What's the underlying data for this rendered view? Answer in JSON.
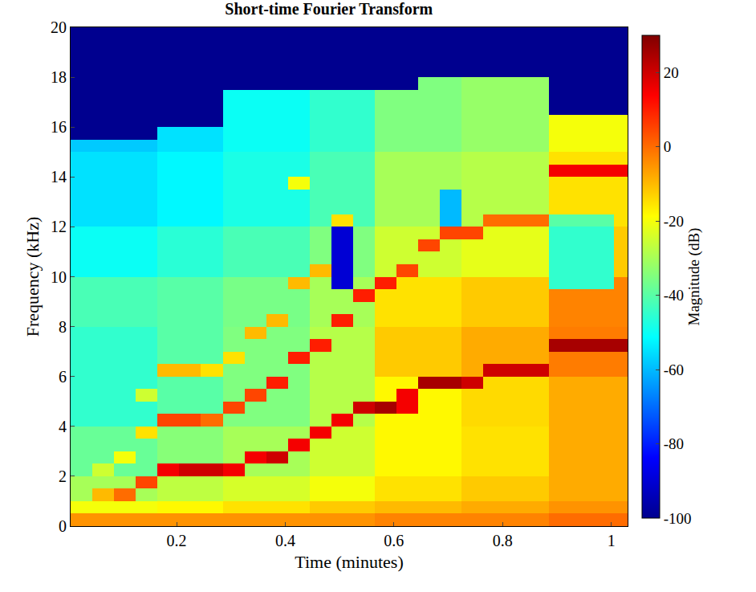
{
  "chart_data": {
    "type": "heatmap",
    "title": "Short-time Fourier Transform",
    "x_label": "Time (minutes)",
    "y_label": "Frequency (kHz)",
    "colorbar_label": "Magnitude (dB)",
    "x": [
      0.025,
      0.065,
      0.105,
      0.145,
      0.185,
      0.225,
      0.265,
      0.305,
      0.345,
      0.385,
      0.425,
      0.465,
      0.505,
      0.545,
      0.585,
      0.625,
      0.665,
      0.705,
      0.745,
      0.785,
      0.825,
      0.865,
      0.905,
      0.945,
      0.985,
      1.025
    ],
    "y": [
      0.25,
      0.75,
      1.25,
      1.75,
      2.25,
      2.75,
      3.25,
      3.75,
      4.25,
      4.75,
      5.25,
      5.75,
      6.25,
      6.75,
      7.25,
      7.75,
      8.25,
      8.75,
      9.25,
      9.75,
      10.25,
      10.75,
      11.25,
      11.75,
      12.25,
      12.75,
      13.25,
      13.75,
      14.25,
      14.75,
      15.25,
      15.75,
      16.25,
      16.75,
      17.25,
      17.75,
      18.25,
      18.75,
      19.25,
      19.75
    ],
    "z": [
      [
        -5,
        -5,
        -5,
        -5,
        -5,
        -5,
        -5,
        -5,
        -5,
        -5,
        -5,
        -5,
        -5,
        -5,
        -3,
        -3,
        -3,
        -3,
        -3,
        -3,
        -3,
        -3,
        0,
        0,
        0,
        0
      ],
      [
        -20,
        -20,
        -20,
        -20,
        -18,
        -18,
        -18,
        -15,
        -15,
        -15,
        -15,
        -12,
        -12,
        -12,
        -10,
        -10,
        -10,
        -10,
        -8,
        -8,
        -8,
        -8,
        -5,
        -5,
        -5,
        -5
      ],
      [
        -30,
        -10,
        0,
        -30,
        -27,
        -27,
        -27,
        -24,
        -24,
        -24,
        -24,
        -20,
        -20,
        -20,
        -15,
        -15,
        -15,
        -15,
        -12,
        -12,
        -12,
        -12,
        -8,
        -8,
        -8,
        -8
      ],
      [
        -30,
        -30,
        -30,
        5,
        -27,
        -27,
        -27,
        -24,
        -24,
        -24,
        -24,
        -20,
        -20,
        -20,
        -15,
        -15,
        -15,
        -15,
        -12,
        -12,
        -12,
        -12,
        -8,
        -8,
        -8,
        -8
      ],
      [
        -38,
        -25,
        -38,
        -38,
        15,
        20,
        20,
        15,
        -30,
        -30,
        -30,
        -25,
        -25,
        -25,
        -18,
        -18,
        -18,
        -18,
        -15,
        -15,
        -15,
        -15,
        -8,
        -8,
        -8,
        -8
      ],
      [
        -38,
        -38,
        -20,
        -38,
        -34,
        -34,
        -34,
        -30,
        15,
        20,
        -30,
        -25,
        -25,
        -25,
        -18,
        -18,
        -18,
        -18,
        -15,
        -15,
        -15,
        -15,
        -8,
        -8,
        -8,
        -8
      ],
      [
        -38,
        -38,
        -38,
        -38,
        -34,
        -34,
        -34,
        -30,
        -30,
        -30,
        15,
        -25,
        -25,
        -25,
        -18,
        -18,
        -18,
        -18,
        -15,
        -15,
        -15,
        -15,
        -8,
        -8,
        -8,
        -8
      ],
      [
        -38,
        -38,
        -38,
        -15,
        -34,
        -34,
        -34,
        -30,
        -30,
        -30,
        -30,
        15,
        -25,
        -25,
        -18,
        -18,
        -18,
        -18,
        -15,
        -15,
        -15,
        -15,
        -8,
        -8,
        -8,
        -8
      ],
      [
        -45,
        -45,
        -45,
        -45,
        5,
        5,
        0,
        -35,
        -35,
        -35,
        -35,
        -28,
        15,
        -28,
        -18,
        -18,
        -18,
        -18,
        -14,
        -14,
        -14,
        -14,
        -8,
        -8,
        -8,
        -8
      ],
      [
        -45,
        -45,
        -45,
        -45,
        -40,
        -40,
        -40,
        5,
        -35,
        -35,
        -35,
        -28,
        -28,
        20,
        25,
        15,
        -18,
        -18,
        -14,
        -14,
        -14,
        -14,
        -8,
        -8,
        -8,
        -8
      ],
      [
        -45,
        -45,
        -45,
        -25,
        -40,
        -40,
        -40,
        -35,
        5,
        -35,
        -35,
        -28,
        -28,
        -28,
        -18,
        15,
        -18,
        -18,
        -14,
        -14,
        -14,
        -14,
        -8,
        -8,
        -8,
        -8
      ],
      [
        -45,
        -45,
        -45,
        -45,
        -40,
        -40,
        -40,
        -35,
        -35,
        10,
        -35,
        -28,
        -28,
        -28,
        -18,
        -18,
        25,
        25,
        20,
        -14,
        -14,
        -14,
        -8,
        -8,
        -8,
        -8
      ],
      [
        -45,
        -45,
        -45,
        -45,
        -10,
        -10,
        -15,
        -35,
        -35,
        -35,
        -35,
        -28,
        -28,
        -28,
        -12,
        -12,
        -12,
        -12,
        -8,
        20,
        20,
        20,
        -2,
        -2,
        -2,
        -2
      ],
      [
        -45,
        -45,
        -45,
        -45,
        -40,
        -40,
        -40,
        -15,
        -35,
        -35,
        10,
        -28,
        -28,
        -28,
        -12,
        -12,
        -12,
        -12,
        -8,
        -8,
        -8,
        -8,
        -2,
        -2,
        -2,
        -2
      ],
      [
        -45,
        -45,
        -45,
        -45,
        -40,
        -40,
        -40,
        -35,
        -35,
        -35,
        -35,
        10,
        -28,
        -28,
        -12,
        -12,
        -12,
        -12,
        -8,
        -8,
        -8,
        -8,
        25,
        25,
        25,
        25
      ],
      [
        -45,
        -45,
        -45,
        -45,
        -40,
        -40,
        -40,
        -35,
        -10,
        -35,
        -35,
        -28,
        -28,
        -28,
        -12,
        -12,
        -12,
        -12,
        -8,
        -8,
        -8,
        -8,
        -2,
        -2,
        -2,
        -2
      ],
      [
        -42,
        -42,
        -42,
        -42,
        -40,
        -40,
        -40,
        -36,
        -36,
        -10,
        -36,
        -30,
        10,
        -30,
        -15,
        -15,
        -15,
        -15,
        -12,
        -12,
        -12,
        -12,
        -3,
        -3,
        -3,
        -3
      ],
      [
        -42,
        -42,
        -42,
        -42,
        -40,
        -40,
        -40,
        -36,
        -36,
        -36,
        -36,
        -30,
        -30,
        -30,
        -15,
        -15,
        -15,
        -15,
        -12,
        -12,
        -12,
        -12,
        -3,
        -3,
        -3,
        -3
      ],
      [
        -42,
        -42,
        -42,
        -42,
        -40,
        -40,
        -40,
        -36,
        -36,
        -36,
        -36,
        -30,
        -30,
        10,
        -15,
        -15,
        -15,
        -15,
        -12,
        -12,
        -12,
        -12,
        -3,
        -3,
        -3,
        -3
      ],
      [
        -42,
        -42,
        -42,
        -42,
        -40,
        -40,
        -40,
        -36,
        -36,
        -36,
        -10,
        -30,
        -90,
        -30,
        10,
        -15,
        -15,
        -15,
        -12,
        -12,
        -12,
        -12,
        -45,
        -45,
        -45,
        -3
      ],
      [
        -50,
        -50,
        -50,
        -50,
        -46,
        -46,
        -46,
        -42,
        -42,
        -42,
        -42,
        -10,
        -90,
        -35,
        -25,
        5,
        -25,
        -25,
        -22,
        -22,
        -22,
        -22,
        -45,
        -45,
        -45,
        -12
      ],
      [
        -50,
        -50,
        -50,
        -50,
        -46,
        -46,
        -46,
        -42,
        -42,
        -42,
        -42,
        -35,
        -90,
        -35,
        -25,
        -25,
        -25,
        -25,
        -22,
        -22,
        -22,
        -22,
        -45,
        -45,
        -45,
        -12
      ],
      [
        -50,
        -50,
        -50,
        -50,
        -46,
        -46,
        -46,
        -42,
        -42,
        -42,
        -42,
        -35,
        -90,
        -35,
        -25,
        -25,
        5,
        -25,
        -22,
        -22,
        -22,
        -22,
        -45,
        -45,
        -45,
        -12
      ],
      [
        -50,
        -50,
        -50,
        -50,
        -46,
        -46,
        -46,
        -42,
        -42,
        -42,
        -42,
        -35,
        -90,
        -35,
        -25,
        -25,
        -25,
        5,
        5,
        -22,
        -22,
        -22,
        -45,
        -45,
        -45,
        -12
      ],
      [
        -55,
        -55,
        -55,
        -55,
        -52,
        -52,
        -52,
        -48,
        -48,
        -48,
        -48,
        -42,
        -15,
        -42,
        -30,
        -30,
        -30,
        -60,
        -28,
        0,
        0,
        0,
        -40,
        -40,
        -40,
        -15
      ],
      [
        -55,
        -55,
        -55,
        -55,
        -52,
        -52,
        -52,
        -48,
        -48,
        -48,
        -48,
        -42,
        -42,
        -42,
        -30,
        -30,
        -30,
        -60,
        -28,
        -28,
        -28,
        -28,
        -15,
        -15,
        -15,
        -15
      ],
      [
        -55,
        -55,
        -55,
        -55,
        -52,
        -52,
        -52,
        -48,
        -48,
        -48,
        -48,
        -42,
        -42,
        -42,
        -30,
        -30,
        -30,
        -60,
        -28,
        -28,
        -28,
        -28,
        -15,
        -15,
        -15,
        -15
      ],
      [
        -55,
        -55,
        -55,
        -55,
        -52,
        -52,
        -52,
        -48,
        -48,
        -48,
        -20,
        -42,
        -42,
        -42,
        -30,
        -30,
        -30,
        -30,
        -28,
        -28,
        -28,
        -28,
        -15,
        -15,
        -15,
        -15
      ],
      [
        -55,
        -55,
        -55,
        -55,
        -52,
        -52,
        -52,
        -48,
        -48,
        -48,
        -48,
        -42,
        -42,
        -42,
        -30,
        -30,
        -30,
        -30,
        -28,
        -28,
        -28,
        -28,
        15,
        15,
        15,
        15
      ],
      [
        -55,
        -55,
        -55,
        -55,
        -52,
        -52,
        -52,
        -48,
        -48,
        -48,
        -48,
        -42,
        -42,
        -42,
        -30,
        -30,
        -30,
        -30,
        -28,
        -28,
        -28,
        -28,
        -15,
        -15,
        -15,
        -15
      ],
      [
        -58,
        -58,
        -58,
        -58,
        -55,
        -55,
        -55,
        -50,
        -50,
        -50,
        -50,
        -45,
        -45,
        -45,
        -35,
        -35,
        -35,
        -35,
        -32,
        -32,
        -32,
        -32,
        -20,
        -20,
        -20,
        -20
      ],
      [
        -100,
        -100,
        -100,
        -100,
        -55,
        -55,
        -55,
        -50,
        -50,
        -50,
        -50,
        -45,
        -45,
        -45,
        -35,
        -35,
        -35,
        -35,
        -32,
        -32,
        -32,
        -32,
        -20,
        -20,
        -20,
        -20
      ],
      [
        -100,
        -100,
        -100,
        -100,
        -100,
        -100,
        -100,
        -50,
        -50,
        -50,
        -50,
        -45,
        -45,
        -45,
        -35,
        -35,
        -35,
        -35,
        -32,
        -32,
        -32,
        -32,
        -20,
        -20,
        -20,
        -20
      ],
      [
        -100,
        -100,
        -100,
        -100,
        -100,
        -100,
        -100,
        -50,
        -50,
        -50,
        -50,
        -45,
        -45,
        -45,
        -35,
        -35,
        -35,
        -35,
        -32,
        -32,
        -32,
        -32,
        -100,
        -100,
        -100,
        -100
      ],
      [
        -100,
        -100,
        -100,
        -100,
        -100,
        -100,
        -100,
        -50,
        -50,
        -50,
        -50,
        -45,
        -45,
        -45,
        -35,
        -35,
        -35,
        -35,
        -32,
        -32,
        -32,
        -32,
        -100,
        -100,
        -100,
        -100
      ],
      [
        -100,
        -100,
        -100,
        -100,
        -100,
        -100,
        -100,
        -100,
        -100,
        -100,
        -100,
        -100,
        -100,
        -100,
        -100,
        -100,
        -35,
        -35,
        -32,
        -32,
        -32,
        -32,
        -100,
        -100,
        -100,
        -100
      ],
      [
        -100,
        -100,
        -100,
        -100,
        -100,
        -100,
        -100,
        -100,
        -100,
        -100,
        -100,
        -100,
        -100,
        -100,
        -100,
        -100,
        -100,
        -100,
        -100,
        -100,
        -100,
        -100,
        -100,
        -100,
        -100,
        -100
      ],
      [
        -100,
        -100,
        -100,
        -100,
        -100,
        -100,
        -100,
        -100,
        -100,
        -100,
        -100,
        -100,
        -100,
        -100,
        -100,
        -100,
        -100,
        -100,
        -100,
        -100,
        -100,
        -100,
        -100,
        -100,
        -100,
        -100
      ],
      [
        -100,
        -100,
        -100,
        -100,
        -100,
        -100,
        -100,
        -100,
        -100,
        -100,
        -100,
        -100,
        -100,
        -100,
        -100,
        -100,
        -100,
        -100,
        -100,
        -100,
        -100,
        -100,
        -100,
        -100,
        -100,
        -100
      ],
      [
        -100,
        -100,
        -100,
        -100,
        -100,
        -100,
        -100,
        -100,
        -100,
        -100,
        -100,
        -100,
        -100,
        -100,
        -100,
        -100,
        -100,
        -100,
        -100,
        -100,
        -100,
        -100,
        -100,
        -100,
        -100,
        -100
      ]
    ],
    "xlim": [
      0.005,
      1.03
    ],
    "ylim": [
      0,
      20
    ],
    "xticks": [
      0.2,
      0.4,
      0.6,
      0.8,
      1
    ],
    "yticks": [
      0,
      2,
      4,
      6,
      8,
      10,
      12,
      14,
      16,
      18,
      20
    ],
    "colorbar_range": [
      -100,
      30
    ],
    "colorbar_ticks": [
      -100,
      -80,
      -60,
      -40,
      -20,
      0,
      20
    ]
  }
}
